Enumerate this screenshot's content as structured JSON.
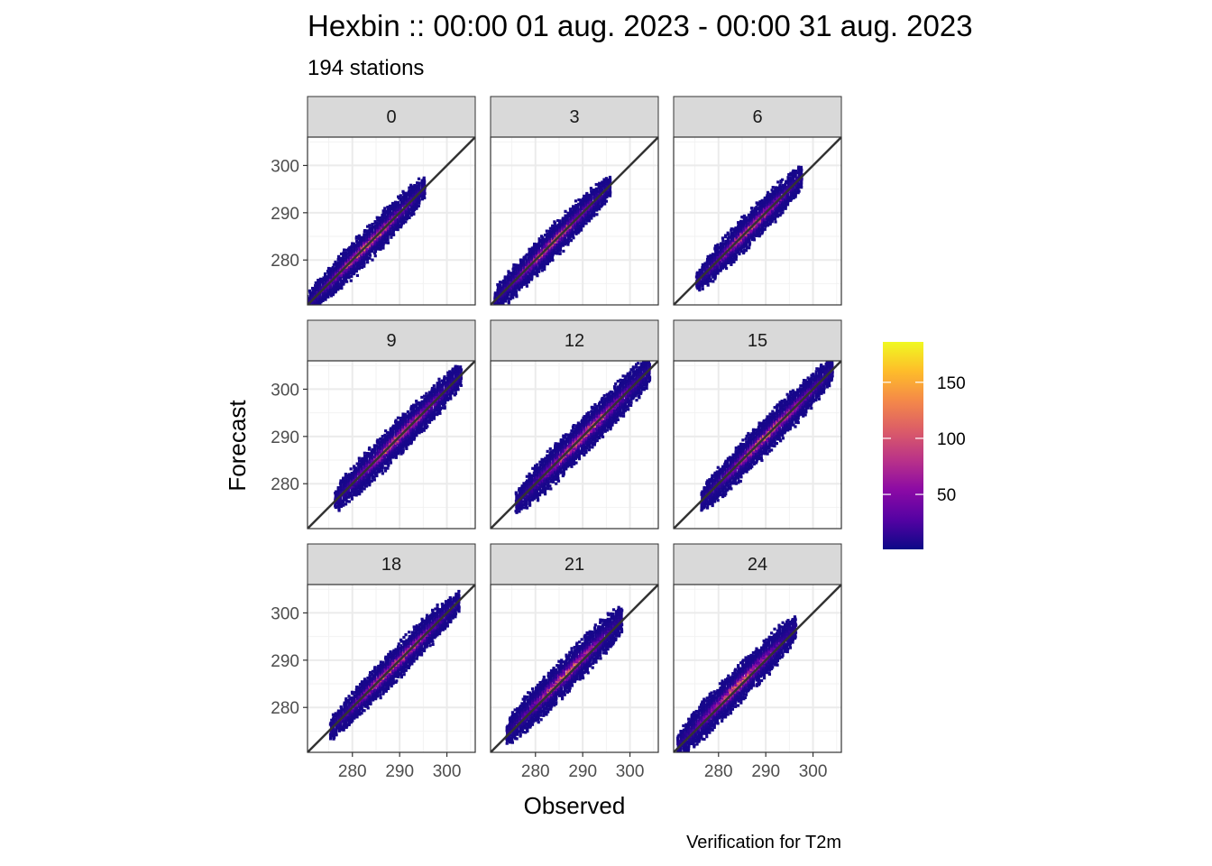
{
  "chart_data": {
    "type": "hexbin",
    "title": "Hexbin :: 00:00 01 aug. 2023 - 00:00 31 aug. 2023",
    "subtitle": "194 stations",
    "xlabel": "Observed",
    "ylabel": "Forecast",
    "caption": "Verification for T2m",
    "xlim": [
      270.5,
      306
    ],
    "ylim": [
      270.5,
      306
    ],
    "xticks": [
      280,
      290,
      300
    ],
    "yticks": [
      280,
      290,
      300
    ],
    "reference_line": "y = x",
    "facets": [
      {
        "label": "0",
        "obs_range": [
          270.5,
          295.5
        ],
        "bias": 0.0,
        "spread": 1.4
      },
      {
        "label": "3",
        "obs_range": [
          271.5,
          296.0
        ],
        "bias": 0.0,
        "spread": 1.4
      },
      {
        "label": "6",
        "obs_range": [
          275.5,
          298.0
        ],
        "bias": 0.0,
        "spread": 1.4
      },
      {
        "label": "9",
        "obs_range": [
          276.5,
          303.0
        ],
        "bias": 0.0,
        "spread": 1.5
      },
      {
        "label": "12",
        "obs_range": [
          276.0,
          304.5
        ],
        "bias": 0.0,
        "spread": 1.6
      },
      {
        "label": "15",
        "obs_range": [
          276.5,
          304.5
        ],
        "bias": 0.0,
        "spread": 1.5
      },
      {
        "label": "18",
        "obs_range": [
          275.5,
          302.5
        ],
        "bias": 0.0,
        "spread": 1.4
      },
      {
        "label": "21",
        "obs_range": [
          274.0,
          298.5
        ],
        "bias": 0.5,
        "spread": 1.6
      },
      {
        "label": "24",
        "obs_range": [
          271.5,
          296.5
        ],
        "bias": 0.5,
        "spread": 1.6
      }
    ],
    "colorbar": {
      "palette": [
        "#0d0887",
        "#5402a3",
        "#8b0aa5",
        "#b93289",
        "#db5c68",
        "#f48849",
        "#febc2a",
        "#f0f921"
      ],
      "range": [
        1,
        186
      ],
      "ticks": [
        50,
        100,
        150
      ]
    }
  }
}
